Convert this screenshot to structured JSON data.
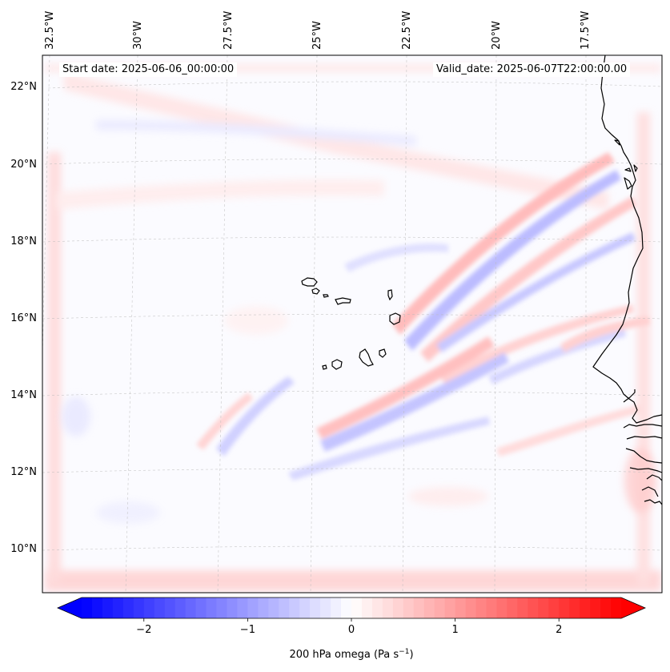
{
  "annotations": {
    "start_date": "Start date: 2025-06-06_00:00:00",
    "valid_date": "Valid_date: 2025-06-07T22:00:00.00"
  },
  "map": {
    "longitude_labels": [
      "32.5°W",
      "30°W",
      "27.5°W",
      "25°W",
      "22.5°W",
      "20°W",
      "17.5°W"
    ],
    "latitude_labels": [
      "22°N",
      "20°N",
      "18°N",
      "16°N",
      "14°N",
      "12°N",
      "10°N"
    ],
    "features": [
      "Cabo Verde islands",
      "West African coastline"
    ]
  },
  "colorbar": {
    "label": "200 hPa omega (Pa s",
    "label_superscript": "−1",
    "label_suffix": ")",
    "ticks": [
      "−2",
      "−1",
      "0",
      "1",
      "2"
    ],
    "range": [
      -2.6,
      2.6
    ],
    "extend": "both",
    "colors": {
      "negative": "#0000ff",
      "zero": "#ffffff",
      "positive": "#ff0000"
    }
  }
}
